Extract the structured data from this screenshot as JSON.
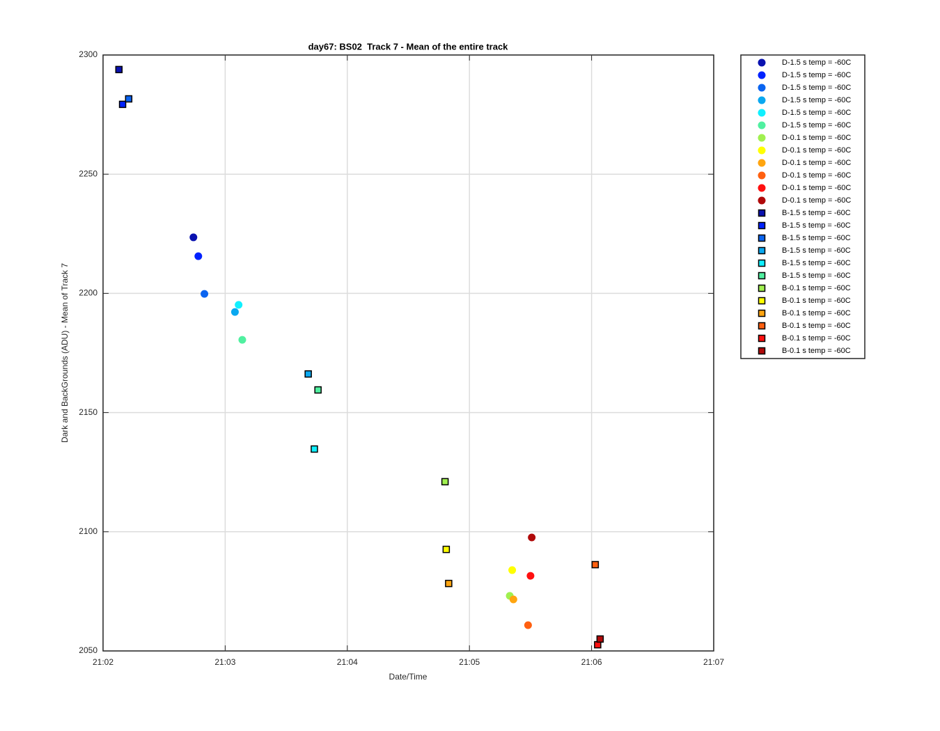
{
  "chart_data": {
    "type": "scatter",
    "title": "day67: BS02  Track 7 - Mean of the entire track",
    "x_label": "Date/Time",
    "y_label": "Dark and BackGrounds (ADU) - Mean of Track 7",
    "xlim": [
      1262,
      1267
    ],
    "xticks": [
      {
        "value": 1262,
        "label": "21:02"
      },
      {
        "value": 1263,
        "label": "21:03"
      },
      {
        "value": 1264,
        "label": "21:04"
      },
      {
        "value": 1265,
        "label": "21:05"
      },
      {
        "value": 1266,
        "label": "21:06"
      },
      {
        "value": 1267,
        "label": "21:07"
      }
    ],
    "ylim": [
      2050,
      2300
    ],
    "yticks": [
      2050,
      2100,
      2150,
      2200,
      2250,
      2300
    ],
    "grid": true,
    "legend_position": "outside-right",
    "series": [
      {
        "name": "D-1.5 s temp = -60C",
        "color": "#0a12b0",
        "marker": "circle",
        "x": [
          1262.74
        ],
        "values": [
          2223.5
        ]
      },
      {
        "name": "D-1.5 s temp = -60C",
        "color": "#0022ff",
        "marker": "circle",
        "x": [
          1262.78
        ],
        "values": [
          2215.6
        ]
      },
      {
        "name": "D-1.5 s temp = -60C",
        "color": "#0a64f0",
        "marker": "circle",
        "x": [
          1262.83
        ],
        "values": [
          2199.8
        ]
      },
      {
        "name": "D-1.5 s temp = -60C",
        "color": "#0aa8f0",
        "marker": "circle",
        "x": [
          1263.08
        ],
        "values": [
          2192.2
        ]
      },
      {
        "name": "D-1.5 s temp = -60C",
        "color": "#10f0ff",
        "marker": "circle",
        "x": [
          1263.11
        ],
        "values": [
          2195.2
        ]
      },
      {
        "name": "D-1.5 s temp = -60C",
        "color": "#50f0a0",
        "marker": "circle",
        "x": [
          1263.14
        ],
        "values": [
          2180.5
        ]
      },
      {
        "name": "D-0.1 s temp = -60C",
        "color": "#a0f050",
        "marker": "circle",
        "x": [
          1265.33
        ],
        "values": [
          2073.1
        ]
      },
      {
        "name": "D-0.1 s temp = -60C",
        "color": "#ffff00",
        "marker": "circle",
        "x": [
          1265.35
        ],
        "values": [
          2083.9
        ]
      },
      {
        "name": "D-0.1 s temp = -60C",
        "color": "#ffa510",
        "marker": "circle",
        "x": [
          1265.36
        ],
        "values": [
          2071.6
        ]
      },
      {
        "name": "D-0.1 s temp = -60C",
        "color": "#ff6010",
        "marker": "circle",
        "x": [
          1265.48
        ],
        "values": [
          2060.8
        ]
      },
      {
        "name": "D-0.1 s temp = -60C",
        "color": "#ff1010",
        "marker": "circle",
        "x": [
          1265.5
        ],
        "values": [
          2081.5
        ]
      },
      {
        "name": "D-0.1 s temp = -60C",
        "color": "#b00a0a",
        "marker": "circle",
        "x": [
          1265.51
        ],
        "values": [
          2097.6
        ]
      },
      {
        "name": "B-1.5 s temp = -60C",
        "color": "#0a12b0",
        "marker": "square",
        "x": [
          1262.13
        ],
        "values": [
          2293.9
        ]
      },
      {
        "name": "B-1.5 s temp = -60C",
        "color": "#0022ff",
        "marker": "square",
        "x": [
          1262.16
        ],
        "values": [
          2279.3
        ]
      },
      {
        "name": "B-1.5 s temp = -60C",
        "color": "#0a64f0",
        "marker": "square",
        "x": [
          1262.21
        ],
        "values": [
          2281.6
        ]
      },
      {
        "name": "B-1.5 s temp = -60C",
        "color": "#0aa8f0",
        "marker": "square",
        "x": [
          1263.68
        ],
        "values": [
          2166.2
        ]
      },
      {
        "name": "B-1.5 s temp = -60C",
        "color": "#10f0ff",
        "marker": "square",
        "x": [
          1263.73
        ],
        "values": [
          2134.7
        ]
      },
      {
        "name": "B-1.5 s temp = -60C",
        "color": "#50f0a0",
        "marker": "square",
        "x": [
          1263.76
        ],
        "values": [
          2159.5
        ]
      },
      {
        "name": "B-0.1 s temp = -60C",
        "color": "#a0f050",
        "marker": "square",
        "x": [
          1264.8
        ],
        "values": [
          2121.0
        ]
      },
      {
        "name": "B-0.1 s temp = -60C",
        "color": "#ffff00",
        "marker": "square",
        "x": [
          1264.81
        ],
        "values": [
          2092.6
        ]
      },
      {
        "name": "B-0.1 s temp = -60C",
        "color": "#ffa510",
        "marker": "square",
        "x": [
          1264.83
        ],
        "values": [
          2078.3
        ]
      },
      {
        "name": "B-0.1 s temp = -60C",
        "color": "#ff6010",
        "marker": "square",
        "x": [
          1266.03
        ],
        "values": [
          2086.2
        ]
      },
      {
        "name": "B-0.1 s temp = -60C",
        "color": "#ff1010",
        "marker": "square",
        "x": [
          1266.05
        ],
        "values": [
          2052.6
        ]
      },
      {
        "name": "B-0.1 s temp = -60C",
        "color": "#b00a0a",
        "marker": "square",
        "x": [
          1266.07
        ],
        "values": [
          2055.0
        ]
      }
    ]
  }
}
